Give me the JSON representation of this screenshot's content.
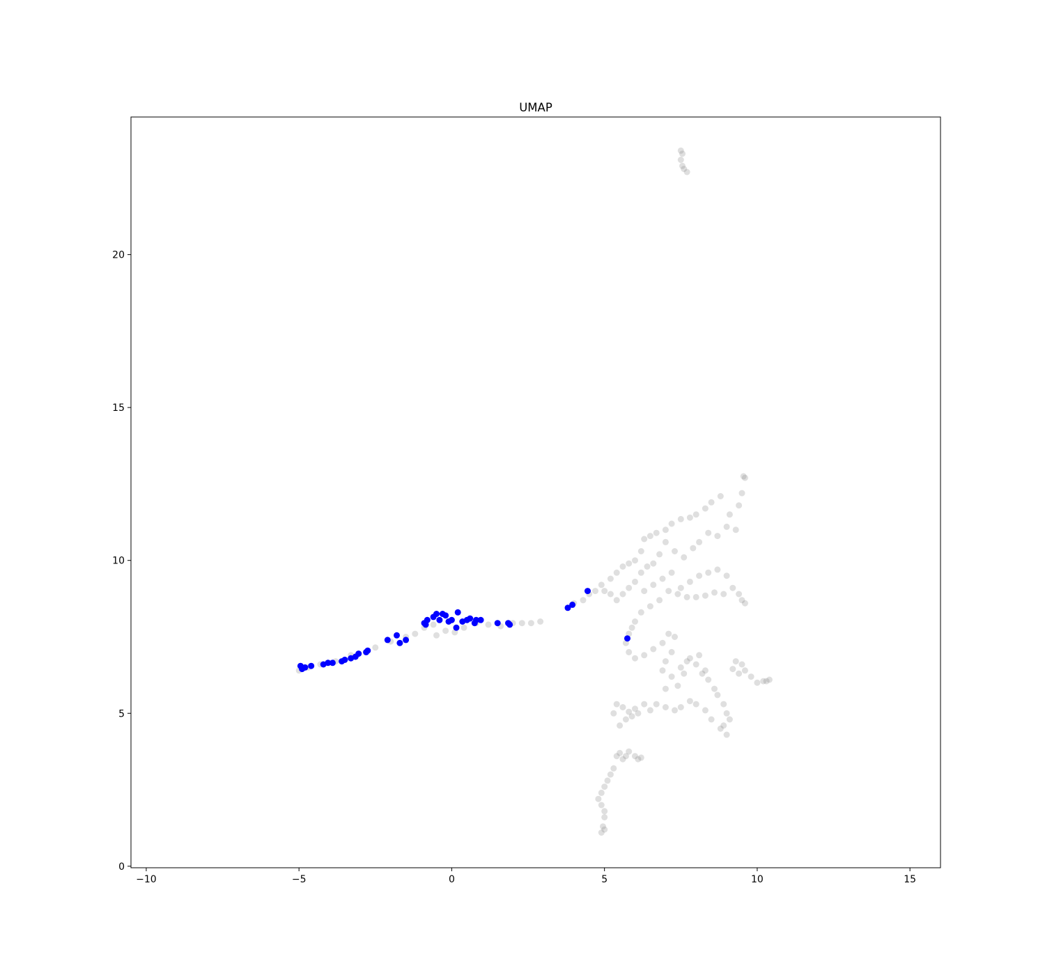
{
  "chart_data": {
    "type": "scatter",
    "title": "UMAP",
    "xlabel": "",
    "ylabel": "",
    "xlim": [
      -10.5,
      16.0
    ],
    "ylim": [
      -0.05,
      24.5
    ],
    "x_ticks": [
      -10,
      -5,
      0,
      5,
      10,
      15
    ],
    "y_ticks": [
      0,
      5,
      10,
      15,
      20
    ],
    "x_tick_labels": [
      "−10",
      "−5",
      "0",
      "5",
      "10",
      "15"
    ],
    "y_tick_labels": [
      "0",
      "5",
      "10",
      "15",
      "20"
    ],
    "grid": false,
    "legend": "none",
    "colors": {
      "background_points": "#808080",
      "highlight_points": "#0000ff",
      "axes": "#000000"
    },
    "series": [
      {
        "color": "#808080",
        "opacity": 0.25,
        "points": [
          [
            7.5,
            23.4
          ],
          [
            7.55,
            23.3
          ],
          [
            7.5,
            23.1
          ],
          [
            7.55,
            22.9
          ],
          [
            7.6,
            22.8
          ],
          [
            7.7,
            22.7
          ],
          [
            -5.0,
            6.4
          ],
          [
            -4.7,
            6.5
          ],
          [
            -4.3,
            6.6
          ],
          [
            -3.8,
            6.7
          ],
          [
            -3.3,
            6.9
          ],
          [
            -2.8,
            7.0
          ],
          [
            -2.5,
            7.15
          ],
          [
            -2.0,
            7.35
          ],
          [
            -1.5,
            7.5
          ],
          [
            -1.2,
            7.6
          ],
          [
            -0.9,
            7.8
          ],
          [
            -0.6,
            7.9
          ],
          [
            -0.5,
            7.55
          ],
          [
            -0.2,
            7.7
          ],
          [
            0.1,
            7.65
          ],
          [
            0.4,
            7.8
          ],
          [
            0.8,
            7.95
          ],
          [
            1.2,
            7.9
          ],
          [
            1.6,
            7.85
          ],
          [
            2.0,
            7.95
          ],
          [
            2.3,
            7.95
          ],
          [
            2.6,
            7.95
          ],
          [
            2.9,
            8.0
          ],
          [
            4.0,
            8.6
          ],
          [
            4.3,
            8.7
          ],
          [
            4.5,
            8.9
          ],
          [
            4.7,
            9.0
          ],
          [
            4.9,
            9.2
          ],
          [
            5.0,
            9.0
          ],
          [
            5.2,
            9.4
          ],
          [
            5.4,
            9.6
          ],
          [
            5.6,
            9.8
          ],
          [
            5.8,
            9.9
          ],
          [
            6.0,
            10.0
          ],
          [
            6.2,
            10.3
          ],
          [
            6.3,
            10.7
          ],
          [
            6.5,
            10.8
          ],
          [
            6.7,
            10.9
          ],
          [
            7.0,
            11.0
          ],
          [
            7.2,
            11.2
          ],
          [
            7.5,
            11.35
          ],
          [
            7.8,
            11.4
          ],
          [
            8.0,
            11.5
          ],
          [
            8.3,
            11.7
          ],
          [
            8.5,
            11.9
          ],
          [
            8.8,
            12.1
          ],
          [
            9.1,
            11.5
          ],
          [
            9.4,
            11.8
          ],
          [
            9.5,
            12.2
          ],
          [
            9.6,
            12.7
          ],
          [
            9.55,
            12.75
          ],
          [
            9.3,
            11.0
          ],
          [
            9.0,
            11.1
          ],
          [
            8.7,
            10.8
          ],
          [
            8.4,
            10.9
          ],
          [
            8.1,
            10.6
          ],
          [
            7.9,
            10.4
          ],
          [
            7.6,
            10.1
          ],
          [
            7.3,
            10.3
          ],
          [
            7.0,
            10.6
          ],
          [
            6.8,
            10.2
          ],
          [
            6.6,
            9.9
          ],
          [
            6.4,
            9.8
          ],
          [
            6.2,
            9.6
          ],
          [
            6.0,
            9.3
          ],
          [
            5.8,
            9.1
          ],
          [
            5.6,
            8.9
          ],
          [
            5.4,
            8.7
          ],
          [
            5.2,
            8.9
          ],
          [
            6.3,
            9.0
          ],
          [
            6.6,
            9.2
          ],
          [
            6.9,
            9.4
          ],
          [
            7.2,
            9.6
          ],
          [
            7.5,
            9.1
          ],
          [
            7.8,
            9.3
          ],
          [
            8.1,
            9.5
          ],
          [
            8.4,
            9.6
          ],
          [
            8.7,
            9.7
          ],
          [
            9.0,
            9.5
          ],
          [
            9.2,
            9.1
          ],
          [
            9.4,
            8.9
          ],
          [
            9.6,
            8.6
          ],
          [
            9.5,
            8.7
          ],
          [
            8.9,
            8.9
          ],
          [
            8.6,
            8.95
          ],
          [
            8.3,
            8.85
          ],
          [
            8.0,
            8.8
          ],
          [
            7.7,
            8.8
          ],
          [
            7.4,
            8.9
          ],
          [
            7.1,
            9.0
          ],
          [
            6.8,
            8.7
          ],
          [
            6.5,
            8.5
          ],
          [
            6.2,
            8.3
          ],
          [
            6.0,
            8.0
          ],
          [
            5.9,
            7.8
          ],
          [
            5.8,
            7.6
          ],
          [
            5.7,
            7.3
          ],
          [
            5.8,
            7.0
          ],
          [
            6.0,
            6.8
          ],
          [
            6.3,
            6.9
          ],
          [
            6.6,
            7.1
          ],
          [
            6.9,
            7.3
          ],
          [
            7.1,
            7.6
          ],
          [
            7.3,
            7.5
          ],
          [
            7.2,
            7.0
          ],
          [
            7.0,
            6.7
          ],
          [
            6.9,
            6.4
          ],
          [
            7.2,
            6.2
          ],
          [
            7.5,
            6.5
          ],
          [
            7.7,
            6.7
          ],
          [
            8.0,
            6.6
          ],
          [
            8.2,
            6.3
          ],
          [
            8.4,
            6.1
          ],
          [
            8.6,
            5.8
          ],
          [
            8.7,
            5.6
          ],
          [
            8.9,
            5.3
          ],
          [
            9.0,
            5.0
          ],
          [
            9.1,
            4.8
          ],
          [
            8.9,
            4.6
          ],
          [
            9.0,
            4.3
          ],
          [
            8.8,
            4.5
          ],
          [
            8.5,
            4.8
          ],
          [
            8.3,
            5.1
          ],
          [
            8.0,
            5.3
          ],
          [
            7.8,
            5.4
          ],
          [
            7.5,
            5.2
          ],
          [
            7.3,
            5.1
          ],
          [
            7.0,
            5.2
          ],
          [
            6.7,
            5.3
          ],
          [
            6.5,
            5.1
          ],
          [
            6.3,
            5.3
          ],
          [
            6.1,
            5.0
          ],
          [
            5.9,
            4.9
          ],
          [
            5.7,
            4.8
          ],
          [
            5.5,
            4.6
          ],
          [
            5.3,
            5.0
          ],
          [
            5.4,
            5.3
          ],
          [
            5.6,
            5.2
          ],
          [
            5.8,
            5.05
          ],
          [
            6.0,
            5.15
          ],
          [
            7.0,
            5.8
          ],
          [
            7.4,
            5.9
          ],
          [
            7.6,
            6.3
          ],
          [
            7.8,
            6.8
          ],
          [
            8.1,
            6.9
          ],
          [
            8.3,
            6.4
          ],
          [
            9.2,
            6.45
          ],
          [
            9.4,
            6.3
          ],
          [
            9.6,
            6.4
          ],
          [
            9.8,
            6.2
          ],
          [
            10.0,
            6.0
          ],
          [
            10.2,
            6.05
          ],
          [
            10.4,
            6.1
          ],
          [
            10.3,
            6.05
          ],
          [
            9.3,
            6.7
          ],
          [
            9.5,
            6.6
          ],
          [
            5.4,
            3.6
          ],
          [
            5.5,
            3.7
          ],
          [
            5.6,
            3.5
          ],
          [
            5.7,
            3.6
          ],
          [
            5.8,
            3.75
          ],
          [
            6.0,
            3.6
          ],
          [
            6.1,
            3.5
          ],
          [
            6.2,
            3.55
          ],
          [
            5.3,
            3.2
          ],
          [
            5.2,
            3.0
          ],
          [
            5.1,
            2.8
          ],
          [
            5.0,
            2.6
          ],
          [
            4.9,
            2.4
          ],
          [
            4.8,
            2.2
          ],
          [
            4.9,
            2.0
          ],
          [
            5.0,
            1.8
          ],
          [
            5.0,
            1.6
          ],
          [
            4.95,
            1.3
          ],
          [
            4.9,
            1.1
          ],
          [
            5.0,
            1.2
          ]
        ]
      },
      {
        "color": "#0000ff",
        "opacity": 1.0,
        "points": [
          [
            -4.95,
            6.55
          ],
          [
            -4.9,
            6.45
          ],
          [
            -4.8,
            6.5
          ],
          [
            -4.6,
            6.55
          ],
          [
            -4.2,
            6.6
          ],
          [
            -4.05,
            6.65
          ],
          [
            -3.9,
            6.65
          ],
          [
            -3.6,
            6.7
          ],
          [
            -3.5,
            6.75
          ],
          [
            -3.3,
            6.8
          ],
          [
            -3.15,
            6.85
          ],
          [
            -3.05,
            6.95
          ],
          [
            -2.8,
            7.0
          ],
          [
            -2.75,
            7.05
          ],
          [
            -2.1,
            7.4
          ],
          [
            -1.8,
            7.55
          ],
          [
            -1.7,
            7.3
          ],
          [
            -1.5,
            7.4
          ],
          [
            -0.9,
            7.95
          ],
          [
            -0.8,
            8.05
          ],
          [
            -0.6,
            8.15
          ],
          [
            -0.5,
            8.25
          ],
          [
            -0.4,
            8.05
          ],
          [
            -0.3,
            8.25
          ],
          [
            -0.2,
            8.2
          ],
          [
            -0.1,
            8.0
          ],
          [
            0.0,
            8.05
          ],
          [
            0.15,
            7.8
          ],
          [
            0.2,
            8.3
          ],
          [
            0.35,
            8.0
          ],
          [
            0.5,
            8.05
          ],
          [
            0.6,
            8.1
          ],
          [
            0.75,
            7.95
          ],
          [
            0.8,
            8.05
          ],
          [
            0.95,
            8.05
          ],
          [
            1.5,
            7.95
          ],
          [
            1.85,
            7.95
          ],
          [
            1.9,
            7.9
          ],
          [
            3.8,
            8.45
          ],
          [
            3.95,
            8.55
          ],
          [
            4.45,
            9.0
          ],
          [
            5.75,
            7.45
          ],
          [
            -0.85,
            7.9
          ]
        ]
      }
    ]
  }
}
